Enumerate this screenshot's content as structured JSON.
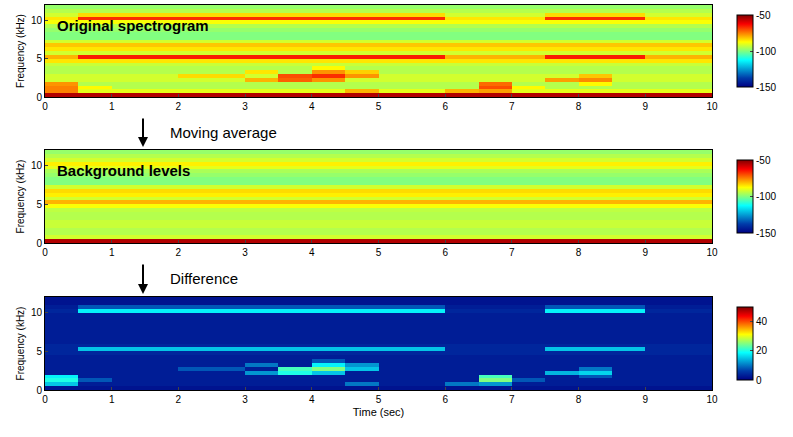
{
  "chart_data": [
    {
      "type": "heatmap",
      "title": "Original spectrogram",
      "ylabel": "Frequency (kHz)",
      "xlim": [
        0,
        10
      ],
      "xticks": [
        0,
        1,
        2,
        3,
        4,
        5,
        6,
        7,
        8,
        9,
        10
      ],
      "ylim": [
        0,
        12
      ],
      "yticks": [
        0,
        5,
        10
      ],
      "grid": false,
      "x_bins": [
        0,
        0.5,
        1,
        1.5,
        2,
        2.5,
        3,
        3.5,
        4,
        4.5,
        5,
        5.5,
        6,
        6.5,
        7,
        7.5,
        8,
        8.5,
        9,
        9.5,
        10
      ],
      "y_bins": [
        0,
        0.5,
        1,
        1.5,
        2,
        2.5,
        3,
        3.5,
        4,
        4.5,
        5,
        5.5,
        6,
        6.5,
        7,
        7.5,
        8,
        8.5,
        9,
        9.5,
        10,
        10.5,
        11,
        11.5,
        12
      ],
      "colorbar": {
        "range": [
          -150,
          -50
        ],
        "ticks": [
          -150,
          -100,
          -50
        ]
      },
      "z": [
        [
          -55,
          -55,
          -55,
          -55,
          -55,
          -55,
          -55,
          -55,
          -55,
          -55,
          -55,
          -55,
          -55,
          -55,
          -55,
          -55,
          -55,
          -55,
          -55,
          -55
        ],
        [
          -75,
          -90,
          -90,
          -90,
          -90,
          -90,
          -90,
          -90,
          -90,
          -80,
          -90,
          -90,
          -80,
          -78,
          -90,
          -90,
          -90,
          -90,
          -90,
          -90
        ],
        [
          -75,
          -87,
          -95,
          -95,
          -95,
          -95,
          -95,
          -95,
          -95,
          -95,
          -95,
          -95,
          -95,
          -70,
          -87,
          -95,
          -95,
          -95,
          -95,
          -95
        ],
        [
          -77,
          -95,
          -95,
          -95,
          -95,
          -95,
          -95,
          -95,
          -95,
          -95,
          -95,
          -95,
          -95,
          -73,
          -95,
          -95,
          -87,
          -95,
          -95,
          -95
        ],
        [
          -92,
          -92,
          -92,
          -92,
          -92,
          -92,
          -80,
          -72,
          -77,
          -92,
          -92,
          -92,
          -92,
          -92,
          -92,
          -78,
          -76,
          -92,
          -92,
          -92
        ],
        [
          -92,
          -92,
          -92,
          -92,
          -84,
          -84,
          -92,
          -70,
          -67,
          -77,
          -92,
          -92,
          -92,
          -92,
          -92,
          -92,
          -82,
          -92,
          -92,
          -92
        ],
        [
          -95,
          -95,
          -95,
          -95,
          -95,
          -95,
          -85,
          -95,
          -77,
          -83,
          -95,
          -95,
          -95,
          -95,
          -95,
          -95,
          -95,
          -95,
          -95,
          -95
        ],
        [
          -95,
          -95,
          -95,
          -95,
          -95,
          -95,
          -95,
          -95,
          -87,
          -95,
          -95,
          -95,
          -95,
          -95,
          -95,
          -95,
          -95,
          -95,
          -95,
          -95
        ],
        [
          -93,
          -93,
          -93,
          -93,
          -93,
          -93,
          -93,
          -93,
          -93,
          -93,
          -93,
          -93,
          -93,
          -93,
          -93,
          -93,
          -93,
          -93,
          -93,
          -93
        ],
        [
          -85,
          -85,
          -85,
          -85,
          -85,
          -85,
          -85,
          -85,
          -85,
          -85,
          -85,
          -85,
          -85,
          -85,
          -85,
          -85,
          -85,
          -85,
          -85,
          -85
        ],
        [
          -80,
          -65,
          -65,
          -65,
          -65,
          -65,
          -65,
          -65,
          -65,
          -65,
          -65,
          -65,
          -80,
          -80,
          -80,
          -65,
          -65,
          -65,
          -80,
          -80
        ],
        [
          -92,
          -92,
          -92,
          -92,
          -92,
          -92,
          -92,
          -92,
          -92,
          -92,
          -92,
          -92,
          -92,
          -92,
          -92,
          -92,
          -92,
          -92,
          -92,
          -92
        ],
        [
          -85,
          -85,
          -85,
          -85,
          -85,
          -85,
          -85,
          -85,
          -85,
          -85,
          -85,
          -85,
          -85,
          -85,
          -85,
          -85,
          -85,
          -85,
          -85,
          -85
        ],
        [
          -82,
          -82,
          -82,
          -82,
          -82,
          -82,
          -82,
          -82,
          -82,
          -82,
          -82,
          -82,
          -82,
          -82,
          -82,
          -82,
          -82,
          -82,
          -82,
          -82
        ],
        [
          -92,
          -92,
          -92,
          -92,
          -92,
          -92,
          -92,
          -92,
          -92,
          -92,
          -92,
          -92,
          -92,
          -92,
          -92,
          -92,
          -92,
          -92,
          -92,
          -92
        ],
        [
          -100,
          -100,
          -100,
          -100,
          -100,
          -100,
          -100,
          -100,
          -100,
          -100,
          -100,
          -100,
          -100,
          -100,
          -100,
          -100,
          -100,
          -100,
          -100,
          -100
        ],
        [
          -100,
          -100,
          -100,
          -100,
          -100,
          -100,
          -100,
          -100,
          -100,
          -100,
          -100,
          -100,
          -100,
          -100,
          -100,
          -100,
          -100,
          -100,
          -100,
          -100
        ],
        [
          -98,
          -98,
          -98,
          -98,
          -98,
          -98,
          -98,
          -98,
          -98,
          -98,
          -98,
          -98,
          -98,
          -98,
          -98,
          -98,
          -98,
          -98,
          -98,
          -98
        ],
        [
          -95,
          -95,
          -95,
          -95,
          -95,
          -95,
          -95,
          -95,
          -95,
          -95,
          -95,
          -95,
          -95,
          -95,
          -95,
          -95,
          -95,
          -95,
          -95,
          -95
        ],
        [
          -88,
          -88,
          -88,
          -88,
          -88,
          -88,
          -88,
          -88,
          -88,
          -88,
          -88,
          -88,
          -88,
          -88,
          -88,
          -88,
          -88,
          -88,
          -88,
          -88
        ],
        [
          -85,
          -67,
          -67,
          -67,
          -67,
          -67,
          -67,
          -67,
          -67,
          -67,
          -67,
          -67,
          -85,
          -85,
          -85,
          -67,
          -67,
          -67,
          -85,
          -85
        ],
        [
          -92,
          -84,
          -84,
          -84,
          -84,
          -84,
          -84,
          -84,
          -84,
          -84,
          -84,
          -84,
          -92,
          -92,
          -92,
          -84,
          -84,
          -84,
          -92,
          -92
        ],
        [
          -95,
          -95,
          -95,
          -95,
          -95,
          -95,
          -95,
          -95,
          -95,
          -95,
          -95,
          -95,
          -95,
          -95,
          -95,
          -95,
          -95,
          -95,
          -95,
          -95
        ],
        [
          -98,
          -98,
          -98,
          -98,
          -98,
          -98,
          -98,
          -98,
          -98,
          -98,
          -98,
          -98,
          -98,
          -98,
          -98,
          -98,
          -98,
          -98,
          -98,
          -98
        ]
      ]
    },
    {
      "type": "heatmap",
      "title": "Background levels",
      "ylabel": "Frequency (kHz)",
      "annotations": [
        "Moving average"
      ],
      "xlim": [
        0,
        10
      ],
      "xticks": [
        0,
        1,
        2,
        3,
        4,
        5,
        6,
        7,
        8,
        9,
        10
      ],
      "ylim": [
        0,
        12
      ],
      "yticks": [
        0,
        5,
        10
      ],
      "grid": false,
      "x_bins": [
        0,
        10
      ],
      "y_bins": [
        0,
        0.5,
        1,
        1.5,
        2,
        2.5,
        3,
        3.5,
        4,
        4.5,
        5,
        5.5,
        6,
        6.5,
        7,
        7.5,
        8,
        8.5,
        9,
        9.5,
        10,
        10.5,
        11,
        11.5,
        12
      ],
      "colorbar": {
        "range": [
          -150,
          -50
        ],
        "ticks": [
          -150,
          -100,
          -50
        ]
      },
      "z": [
        [
          -55
        ],
        [
          -92
        ],
        [
          -95
        ],
        [
          -95
        ],
        [
          -93
        ],
        [
          -93
        ],
        [
          -95
        ],
        [
          -95
        ],
        [
          -94
        ],
        [
          -88
        ],
        [
          -80
        ],
        [
          -92
        ],
        [
          -86
        ],
        [
          -84
        ],
        [
          -92
        ],
        [
          -100
        ],
        [
          -100
        ],
        [
          -98
        ],
        [
          -96
        ],
        [
          -90
        ],
        [
          -86
        ],
        [
          -92
        ],
        [
          -95
        ],
        [
          -98
        ]
      ]
    },
    {
      "type": "heatmap",
      "ylabel": "Frequency (kHz)",
      "xlabel": "Time (sec)",
      "annotations": [
        "Difference"
      ],
      "xlim": [
        0,
        10
      ],
      "xticks": [
        0,
        1,
        2,
        3,
        4,
        5,
        6,
        7,
        8,
        9,
        10
      ],
      "ylim": [
        0,
        12
      ],
      "yticks": [
        0,
        5,
        10
      ],
      "grid": false,
      "x_bins": [
        0,
        0.5,
        1,
        1.5,
        2,
        2.5,
        3,
        3.5,
        4,
        4.5,
        5,
        5.5,
        6,
        6.5,
        7,
        7.5,
        8,
        8.5,
        9,
        9.5,
        10
      ],
      "y_bins": [
        0,
        0.5,
        1,
        1.5,
        2,
        2.5,
        3,
        3.5,
        4,
        4.5,
        5,
        5.5,
        6,
        6.5,
        7,
        7.5,
        8,
        8.5,
        9,
        9.5,
        10,
        10.5,
        11,
        11.5,
        12
      ],
      "colorbar": {
        "range": [
          0,
          50
        ],
        "ticks": [
          0,
          20,
          40
        ]
      },
      "z": [
        [
          2,
          2,
          2,
          2,
          2,
          2,
          2,
          2,
          2,
          2,
          2,
          2,
          2,
          2,
          2,
          2,
          2,
          2,
          2,
          2
        ],
        [
          15,
          3,
          3,
          3,
          3,
          3,
          3,
          3,
          3,
          10,
          3,
          3,
          10,
          12,
          3,
          3,
          3,
          3,
          3,
          3
        ],
        [
          20,
          8,
          3,
          3,
          3,
          3,
          3,
          3,
          3,
          3,
          3,
          3,
          3,
          25,
          8,
          3,
          3,
          3,
          3,
          3
        ],
        [
          18,
          3,
          3,
          3,
          3,
          3,
          3,
          3,
          3,
          3,
          3,
          3,
          3,
          22,
          3,
          3,
          8,
          3,
          3,
          3
        ],
        [
          3,
          3,
          3,
          3,
          3,
          3,
          12,
          20,
          15,
          3,
          3,
          3,
          3,
          3,
          3,
          14,
          16,
          3,
          3,
          3
        ],
        [
          3,
          3,
          3,
          3,
          8,
          8,
          3,
          22,
          25,
          15,
          3,
          3,
          3,
          3,
          3,
          3,
          10,
          3,
          3,
          3
        ],
        [
          3,
          3,
          3,
          3,
          3,
          3,
          10,
          3,
          18,
          12,
          3,
          3,
          3,
          3,
          3,
          3,
          3,
          3,
          3,
          3
        ],
        [
          3,
          3,
          3,
          3,
          3,
          3,
          3,
          3,
          8,
          3,
          3,
          3,
          3,
          3,
          3,
          3,
          3,
          3,
          3,
          3
        ],
        [
          3,
          3,
          3,
          3,
          3,
          3,
          3,
          3,
          3,
          3,
          3,
          3,
          3,
          3,
          3,
          3,
          3,
          3,
          3,
          3
        ],
        [
          4,
          4,
          4,
          4,
          4,
          4,
          4,
          4,
          4,
          4,
          4,
          4,
          4,
          4,
          4,
          4,
          4,
          4,
          4,
          4
        ],
        [
          4,
          15,
          15,
          15,
          15,
          15,
          15,
          15,
          15,
          15,
          15,
          15,
          4,
          4,
          4,
          15,
          15,
          15,
          4,
          4
        ],
        [
          4,
          4,
          4,
          4,
          4,
          4,
          4,
          4,
          4,
          4,
          4,
          4,
          4,
          4,
          4,
          4,
          4,
          4,
          4,
          4
        ],
        [
          3,
          3,
          3,
          3,
          3,
          3,
          3,
          3,
          3,
          3,
          3,
          3,
          3,
          3,
          3,
          3,
          3,
          3,
          3,
          3
        ],
        [
          3,
          3,
          3,
          3,
          3,
          3,
          3,
          3,
          3,
          3,
          3,
          3,
          3,
          3,
          3,
          3,
          3,
          3,
          3,
          3
        ],
        [
          3,
          3,
          3,
          3,
          3,
          3,
          3,
          3,
          3,
          3,
          3,
          3,
          3,
          3,
          3,
          3,
          3,
          3,
          3,
          3
        ],
        [
          3,
          3,
          3,
          3,
          3,
          3,
          3,
          3,
          3,
          3,
          3,
          3,
          3,
          3,
          3,
          3,
          3,
          3,
          3,
          3
        ],
        [
          3,
          3,
          3,
          3,
          3,
          3,
          3,
          3,
          3,
          3,
          3,
          3,
          3,
          3,
          3,
          3,
          3,
          3,
          3,
          3
        ],
        [
          3,
          3,
          3,
          3,
          3,
          3,
          3,
          3,
          3,
          3,
          3,
          3,
          3,
          3,
          3,
          3,
          3,
          3,
          3,
          3
        ],
        [
          3,
          3,
          3,
          3,
          3,
          3,
          3,
          3,
          3,
          3,
          3,
          3,
          3,
          3,
          3,
          3,
          3,
          3,
          3,
          3
        ],
        [
          3,
          3,
          3,
          3,
          3,
          3,
          3,
          3,
          3,
          3,
          3,
          3,
          3,
          3,
          3,
          3,
          3,
          3,
          3,
          3
        ],
        [
          4,
          18,
          18,
          18,
          18,
          18,
          18,
          18,
          18,
          18,
          18,
          18,
          4,
          4,
          4,
          18,
          18,
          18,
          4,
          4
        ],
        [
          3,
          8,
          8,
          8,
          8,
          8,
          8,
          8,
          8,
          8,
          8,
          8,
          3,
          3,
          3,
          8,
          8,
          8,
          3,
          3
        ],
        [
          2,
          2,
          2,
          2,
          2,
          2,
          2,
          2,
          2,
          2,
          2,
          2,
          2,
          2,
          2,
          2,
          2,
          2,
          2,
          2
        ],
        [
          2,
          2,
          2,
          2,
          2,
          2,
          2,
          2,
          2,
          2,
          2,
          2,
          2,
          2,
          2,
          2,
          2,
          2,
          2,
          2
        ]
      ]
    }
  ]
}
